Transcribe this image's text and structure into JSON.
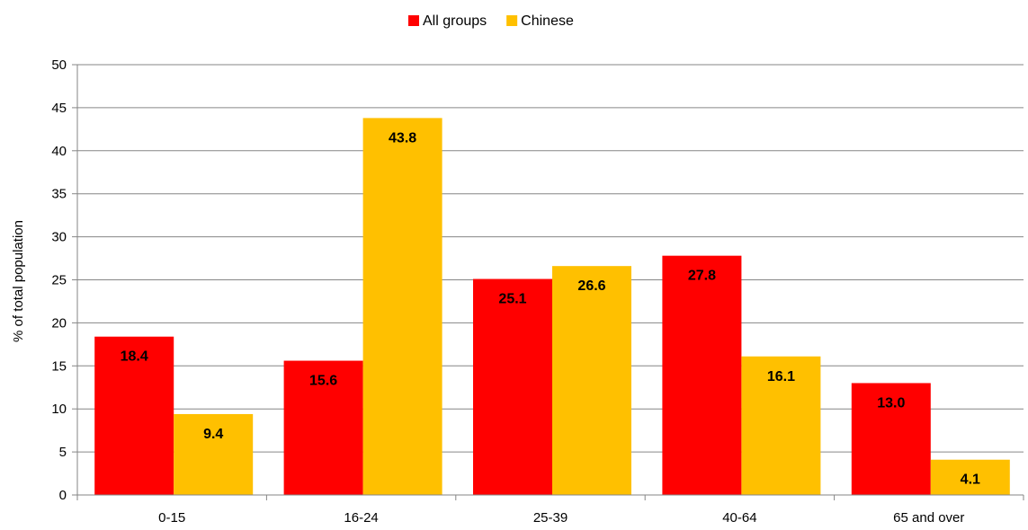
{
  "chart_data": {
    "type": "bar",
    "title": "",
    "xlabel": "",
    "ylabel": "% of total population",
    "ylim": [
      0,
      50
    ],
    "yticks": [
      0,
      5,
      10,
      15,
      20,
      25,
      30,
      35,
      40,
      45,
      50
    ],
    "grid": true,
    "legend_position": "top-center",
    "categories": [
      "0-15",
      "16-24",
      "25-39",
      "40-64",
      "65 and over"
    ],
    "series": [
      {
        "name": "All groups",
        "color": "#FF0000",
        "values": [
          18.4,
          15.6,
          25.1,
          27.8,
          13.0
        ]
      },
      {
        "name": "Chinese",
        "color": "#FFC000",
        "values": [
          9.4,
          43.8,
          26.6,
          16.1,
          4.1
        ]
      }
    ]
  }
}
